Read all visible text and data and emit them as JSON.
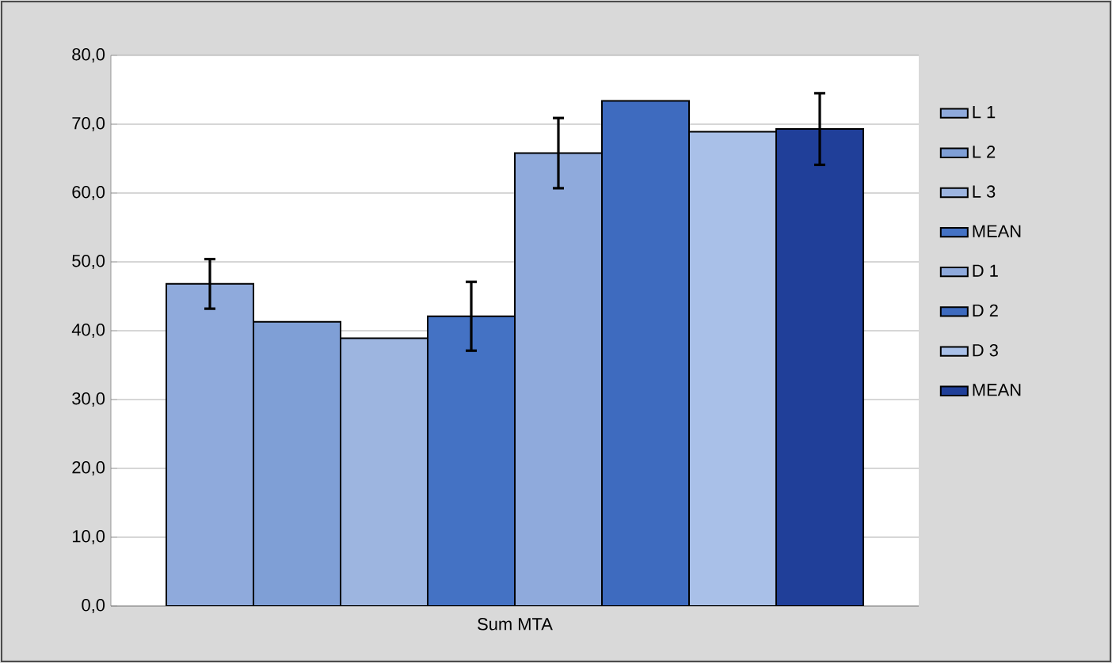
{
  "chart_data": {
    "type": "bar",
    "categories": [
      "Sum MTA"
    ],
    "series": [
      {
        "name": "L 1",
        "color": "#8faadc",
        "values": [
          46.8
        ],
        "errors": [
          3.6
        ]
      },
      {
        "name": "L 2",
        "color": "#7f9fd6",
        "values": [
          41.3
        ]
      },
      {
        "name": "L 3",
        "color": "#9db5e0",
        "values": [
          38.9
        ]
      },
      {
        "name": "MEAN",
        "color": "#4472c4",
        "values": [
          42.1
        ],
        "errors": [
          5.0
        ]
      },
      {
        "name": "D 1",
        "color": "#8faadc",
        "values": [
          65.8
        ],
        "errors": [
          5.1
        ]
      },
      {
        "name": "D 2",
        "color": "#3e6bbf",
        "values": [
          73.4
        ]
      },
      {
        "name": "D 3",
        "color": "#a9c0e8",
        "values": [
          68.9
        ]
      },
      {
        "name": "MEAN",
        "color": "#203f99",
        "values": [
          69.3
        ],
        "errors": [
          5.2
        ]
      }
    ],
    "ylim": [
      0,
      80
    ],
    "yticks": [
      {
        "value": 0,
        "label": "0,0"
      },
      {
        "value": 10,
        "label": "10,0"
      },
      {
        "value": 20,
        "label": "20,0"
      },
      {
        "value": 30,
        "label": "30,0"
      },
      {
        "value": 40,
        "label": "40,0"
      },
      {
        "value": 50,
        "label": "50,0"
      },
      {
        "value": 60,
        "label": "60,0"
      },
      {
        "value": 70,
        "label": "70,0"
      },
      {
        "value": 80,
        "label": "80,0"
      }
    ],
    "grid": "y",
    "legend": "right"
  }
}
